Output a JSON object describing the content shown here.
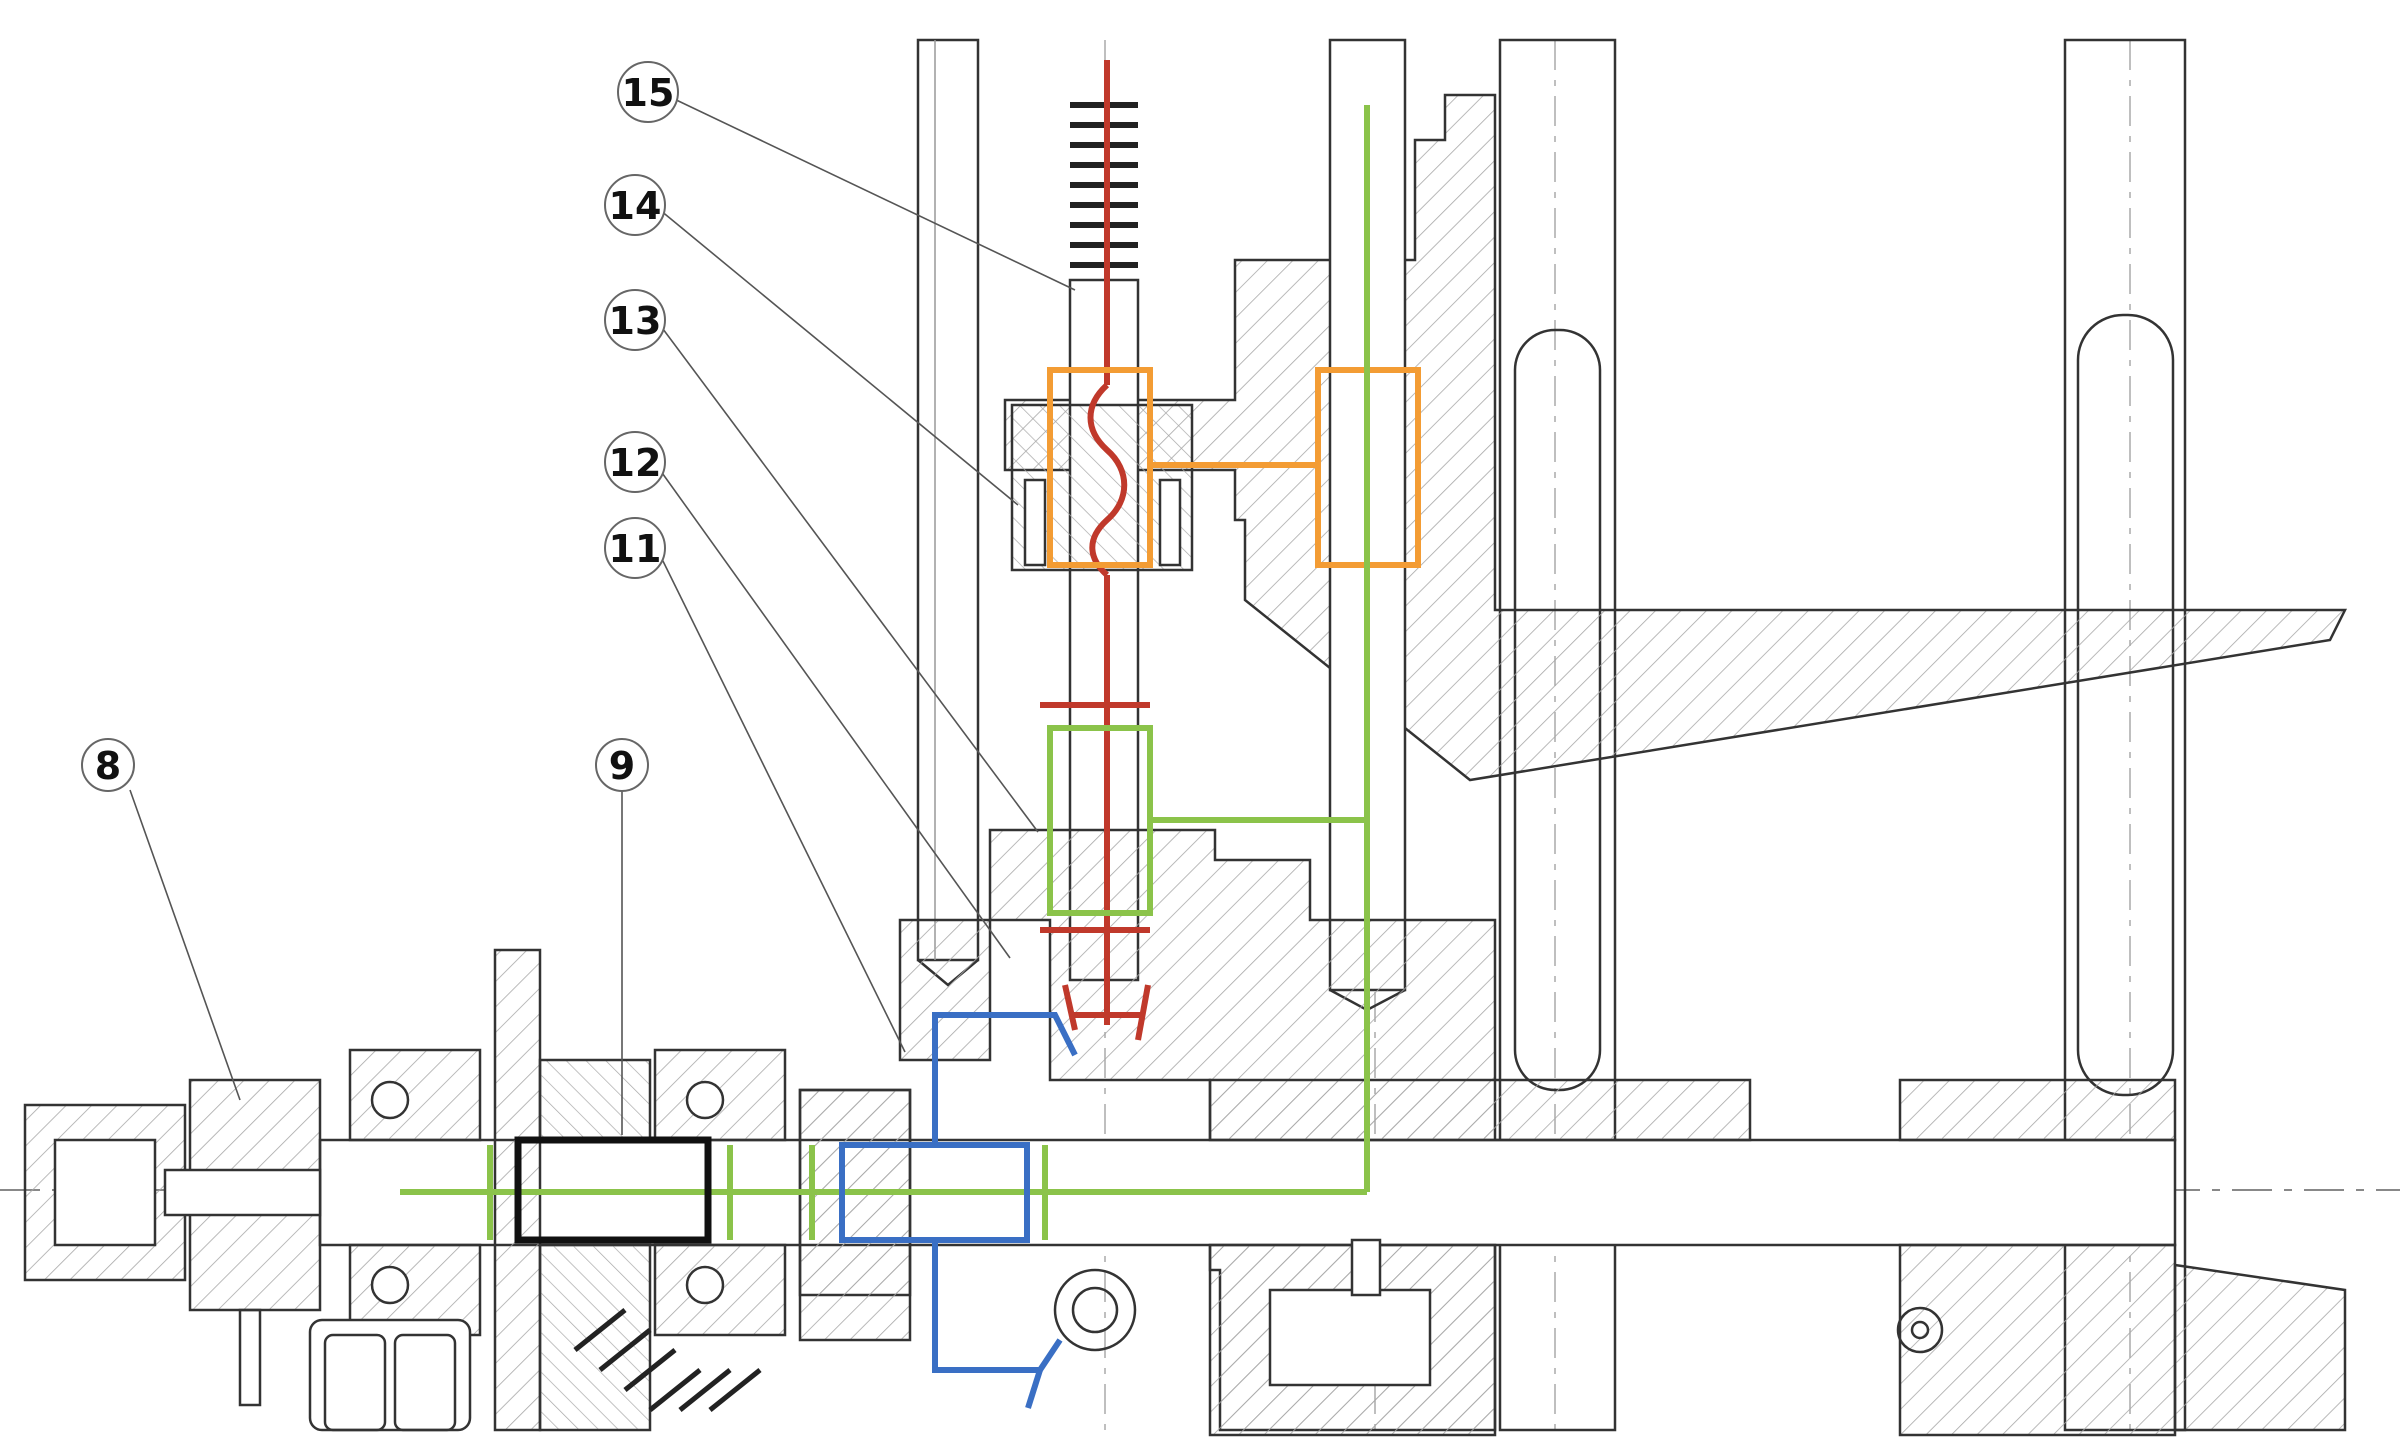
{
  "callouts": {
    "c8": "8",
    "c9": "9",
    "c11": "11",
    "c12": "12",
    "c13": "13",
    "c14": "14",
    "c15": "15"
  },
  "colors": {
    "linework": "#333333",
    "hatch": "#9a9a9a",
    "red_path": "#c0392b",
    "green_path": "#8bc34a",
    "orange_path": "#f39c34",
    "blue_path": "#3a6fc4",
    "black_box": "#111111"
  }
}
